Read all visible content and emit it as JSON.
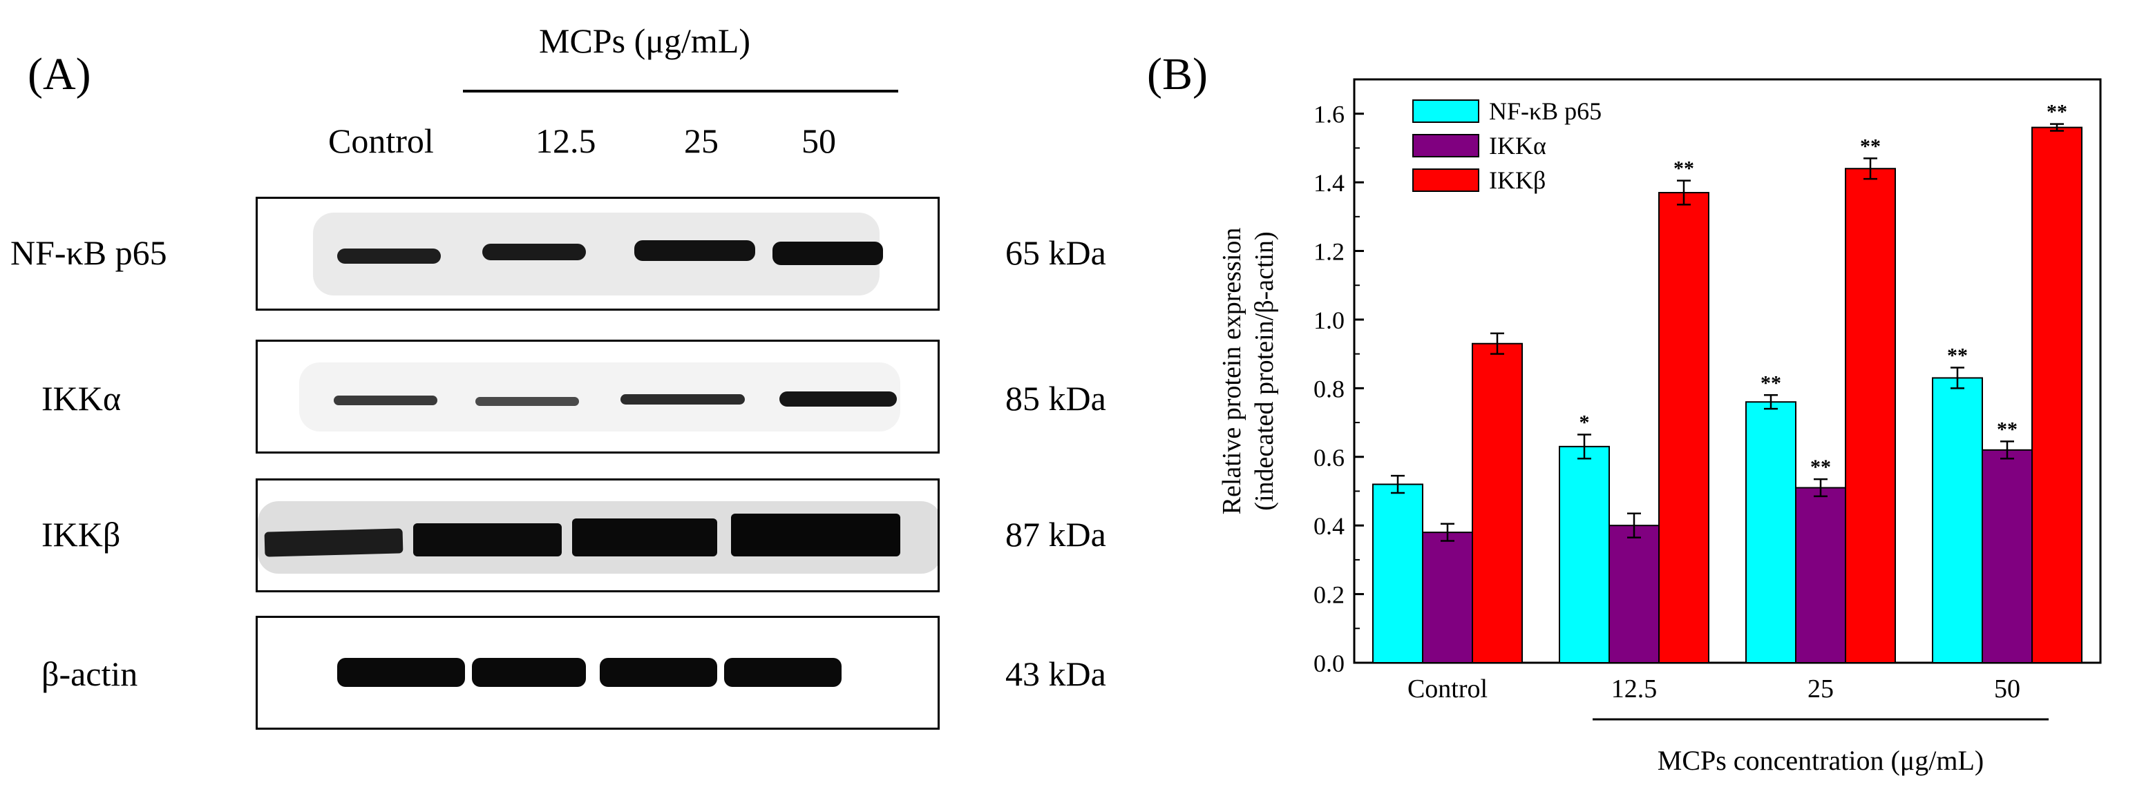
{
  "panel_a": {
    "letter": "(A)",
    "treatment_header": "MCPs (μg/mL)",
    "lanes": [
      "Control",
      "12.5",
      "25",
      "50"
    ],
    "rows": [
      {
        "label": "NF-κB p65",
        "size": "65 kDa"
      },
      {
        "label": "IKKα",
        "size": "85 kDa"
      },
      {
        "label": "IKKβ",
        "size": "87 kDa"
      },
      {
        "label": "β-actin",
        "size": "43 kDa"
      }
    ]
  },
  "panel_b": {
    "letter": "(B)"
  },
  "colors": {
    "nfkb": "#00FFFF",
    "ikka": "#800080",
    "ikkb": "#FF0000",
    "axis": "#000000"
  },
  "chart_data": {
    "type": "bar",
    "title": "",
    "xlabel": "MCPs concentration (μg/mL)",
    "ylabel_line1": "Relative protein expression",
    "ylabel_line2": "(indecated protein/β-actin)",
    "ylim": [
      0.0,
      1.7
    ],
    "yticks": [
      0.0,
      0.2,
      0.4,
      0.6,
      0.8,
      1.0,
      1.2,
      1.4,
      1.6
    ],
    "ytick_labels": [
      "0.0",
      "0.2",
      "0.4",
      "0.6",
      "0.8",
      "1.0",
      "1.2",
      "1.4",
      "1.6"
    ],
    "categories": [
      "Control",
      "12.5",
      "25",
      "50"
    ],
    "legend_position": "top-left",
    "series": [
      {
        "name": "NF-κB p65",
        "color": "#00FFFF",
        "values": [
          0.52,
          0.63,
          0.76,
          0.83
        ],
        "errors": [
          0.025,
          0.035,
          0.02,
          0.03
        ],
        "sig": [
          "",
          "*",
          "**",
          "**"
        ]
      },
      {
        "name": "IKKα",
        "color": "#800080",
        "values": [
          0.38,
          0.4,
          0.51,
          0.62
        ],
        "errors": [
          0.025,
          0.035,
          0.025,
          0.025
        ],
        "sig": [
          "",
          "",
          "**",
          "**"
        ]
      },
      {
        "name": "IKKβ",
        "color": "#FF0000",
        "values": [
          0.93,
          1.37,
          1.44,
          1.56
        ],
        "errors": [
          0.03,
          0.035,
          0.03,
          0.01
        ],
        "sig": [
          "",
          "**",
          "**",
          "**"
        ]
      }
    ]
  }
}
